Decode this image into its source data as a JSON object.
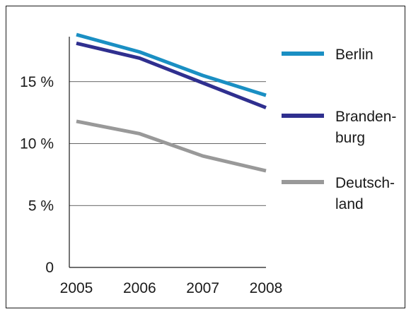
{
  "chart_data": {
    "type": "line",
    "x": [
      "2005",
      "2006",
      "2007",
      "2008"
    ],
    "ylim": [
      0,
      20
    ],
    "yticks": [
      {
        "value": 0,
        "label": "0"
      },
      {
        "value": 5,
        "label": "5 %"
      },
      {
        "value": 10,
        "label": "10 %"
      },
      {
        "value": 15,
        "label": "15 %"
      }
    ],
    "grid": true,
    "legend_position": "right",
    "series": [
      {
        "name": "Berlin",
        "name_lines": [
          "Berlin"
        ],
        "color": "#1a8fc3",
        "values": [
          18.8,
          17.4,
          15.5,
          13.9
        ]
      },
      {
        "name": "Brandenburg",
        "name_lines": [
          "Branden-",
          "burg"
        ],
        "color": "#2f2f8f",
        "values": [
          18.1,
          16.9,
          14.9,
          12.9
        ]
      },
      {
        "name": "Deutschland",
        "name_lines": [
          "Deutsch-",
          "land"
        ],
        "color": "#999999",
        "values": [
          11.8,
          10.8,
          9.0,
          7.8
        ]
      }
    ]
  }
}
